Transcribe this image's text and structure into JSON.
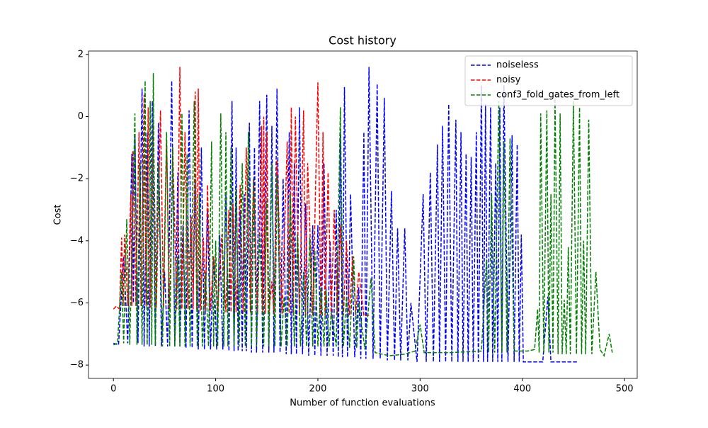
{
  "chart_data": {
    "type": "line",
    "title": "Cost history",
    "x_label": "Number of function evaluations",
    "y_label": "Cost",
    "xlim": [
      -24.4,
      512.4
    ],
    "ylim": [
      -8.43,
      2.11
    ],
    "xticks": [
      0,
      100,
      200,
      300,
      400,
      500
    ],
    "yticks": [
      {
        "value": -8,
        "label": "−8"
      },
      {
        "value": -6,
        "label": "−6"
      },
      {
        "value": -4,
        "label": "−4"
      },
      {
        "value": -2,
        "label": "−2"
      },
      0,
      2
    ],
    "legend": "upper right",
    "line_style": "dashed",
    "series": [
      {
        "name": "noiseless",
        "color": "#0000ff",
        "x": [
          0,
          5,
          10,
          14,
          18,
          19.5,
          21,
          24,
          28,
          30,
          33,
          35,
          38,
          41,
          44,
          47,
          50,
          53,
          57,
          60,
          63,
          65,
          68,
          71,
          74,
          77,
          80,
          83,
          86,
          89,
          92,
          95,
          98,
          101,
          104,
          107,
          110,
          113,
          116,
          118,
          120,
          122,
          124,
          126,
          128,
          130,
          133,
          135,
          138,
          140,
          143,
          146,
          150,
          152,
          155,
          157,
          160,
          163,
          166,
          169,
          172,
          174,
          177,
          179,
          182,
          185,
          188,
          191,
          195,
          197,
          200,
          203,
          206,
          209,
          212,
          215,
          218,
          220,
          222,
          224,
          226,
          229,
          232,
          236,
          240,
          242,
          245,
          247,
          250,
          254,
          258,
          261,
          265,
          268,
          272,
          275,
          278,
          281,
          285,
          288,
          291,
          297,
          303,
          306,
          310,
          313,
          317,
          319,
          322,
          325,
          328,
          331,
          335,
          337,
          340,
          342,
          345,
          347,
          350,
          352,
          355,
          357,
          360,
          362,
          364,
          366,
          369,
          371,
          374,
          376,
          378,
          380,
          382,
          386,
          390,
          392,
          395,
          397,
          399,
          401,
          420,
          425,
          428,
          440,
          455
        ],
        "values": [
          -7.3,
          -7.35,
          -4.5,
          -7.3,
          -1.2,
          -6,
          -0.6,
          -7.3,
          0.9,
          -7.4,
          -0.5,
          -7.4,
          0.5,
          -7.4,
          -0.2,
          -7.4,
          -5,
          -7.4,
          1.15,
          -7.4,
          -1.8,
          -7.4,
          -3.5,
          -7.45,
          0.2,
          -7.45,
          -2,
          -7.5,
          -1,
          -7.5,
          -3,
          -7.5,
          -4.5,
          -7.5,
          -3.8,
          -7.5,
          -2.5,
          -7.55,
          0.5,
          -7.55,
          -1,
          -7.55,
          -3,
          -7.55,
          -2.5,
          -7.55,
          -0.2,
          -7.6,
          -1,
          -7.6,
          0.5,
          -7.6,
          0.7,
          -7.6,
          -0.3,
          -7.6,
          0.9,
          -7.6,
          -2,
          -7.65,
          -0.5,
          -7.65,
          -1.5,
          -7.65,
          0.3,
          -7.65,
          -2.8,
          -7.7,
          -3.5,
          -7.7,
          -3.5,
          -7.7,
          -1.5,
          -7.7,
          -4,
          -7.7,
          -3,
          -7.75,
          -0.5,
          -7.75,
          0.95,
          -7.75,
          -2.5,
          -7.75,
          -5.5,
          -7.8,
          -0.5,
          -7.8,
          1.6,
          -7.8,
          1.05,
          -7.8,
          0.6,
          -7.85,
          -2.4,
          -7.85,
          -3.6,
          -7.85,
          -3.6,
          -7.85,
          -6,
          -7.9,
          -2.5,
          -7.9,
          -1.8,
          -7.9,
          -0.9,
          -7.9,
          -0.3,
          -7.9,
          0.4,
          -7.9,
          -0.1,
          -7.9,
          -0.5,
          -7.9,
          -1.2,
          -7.9,
          -1.3,
          -7.9,
          -0.5,
          -7.9,
          1.0,
          -7.9,
          0.4,
          -7.9,
          0.3,
          -7.9,
          -1.5,
          -7.9,
          0.3,
          -7.9,
          1.0,
          -7.9,
          -0.6,
          -7.9,
          -0.9,
          -7.9,
          -3.8,
          -7.9,
          -7.9,
          -5.8,
          -7.9,
          -7.9,
          -7.9
        ]
      },
      {
        "name": "noisy",
        "color": "#ff0000",
        "x": [
          0,
          3,
          6,
          8,
          9.5,
          11,
          14,
          17,
          18,
          19,
          22,
          25,
          27,
          30,
          32,
          34,
          36,
          39,
          42,
          46,
          49,
          52,
          55,
          58,
          62,
          65,
          67,
          70,
          73,
          76,
          78,
          80,
          81.5,
          83,
          85,
          88,
          90,
          92,
          95,
          98,
          102,
          106,
          110,
          113,
          115,
          117,
          120,
          124,
          127,
          130,
          134,
          137,
          141,
          145,
          146,
          147,
          148.5,
          150,
          152,
          155,
          157,
          160,
          165,
          170,
          172,
          174,
          176,
          178,
          182,
          186,
          188,
          190,
          195,
          200,
          203,
          205,
          207,
          210,
          213,
          216,
          219,
          222,
          225,
          228,
          231,
          234,
          237,
          240,
          245,
          250
        ],
        "values": [
          -6.2,
          -6.1,
          -6.2,
          -3.9,
          -6.1,
          -3.8,
          -6.1,
          -2.5,
          -6.1,
          -1.1,
          -6.1,
          -0.5,
          -6.1,
          0.7,
          -6.1,
          0.3,
          -6.15,
          -0.2,
          -6.15,
          0.2,
          -6.15,
          -0.8,
          -6.2,
          -1.0,
          -6.2,
          1.6,
          -6.2,
          -0.5,
          -6.2,
          -3.2,
          -6.2,
          0.8,
          -6.2,
          0.9,
          -6.25,
          -3.9,
          -6.25,
          -2.2,
          -6.25,
          -4.5,
          -6.25,
          -3.8,
          -6.3,
          -3.0,
          -6.3,
          -2.8,
          -6.3,
          -2.2,
          -6.3,
          -1.0,
          -6.3,
          -2,
          -6.35,
          -0.3,
          -6.35,
          0.0,
          -6.35,
          -0.5,
          -6.35,
          -5.3,
          -6.35,
          -1.4,
          -6.35,
          -0.8,
          -6.35,
          0.3,
          -6.4,
          0.0,
          -6.4,
          0.2,
          -6.4,
          -1.5,
          -6.4,
          1.1,
          -6.4,
          -0.5,
          -6.4,
          -1.8,
          -6.4,
          -3,
          -6.4,
          -3.5,
          -6.4,
          -4,
          -6.4,
          -4.5,
          -6.4,
          -5,
          -6.4,
          -6.4
        ]
      },
      {
        "name": "conf3_fold_gates_from_left",
        "color": "#008000",
        "x": [
          0,
          4,
          8,
          10,
          13,
          16,
          21,
          23,
          26,
          28,
          31,
          33,
          36,
          37.5,
          39,
          41,
          44,
          48,
          52,
          55,
          58,
          60,
          63,
          65,
          67,
          70,
          72,
          75,
          79,
          82,
          84,
          87,
          90,
          93,
          96,
          98,
          100,
          102,
          105,
          108,
          110,
          112,
          115,
          118,
          120,
          123,
          126,
          129,
          132,
          135,
          137,
          140,
          143,
          147,
          150,
          152,
          155,
          158,
          160,
          164,
          167,
          170,
          173,
          177,
          180,
          183,
          186,
          189,
          192,
          195,
          197,
          200,
          203,
          206,
          208,
          211,
          213,
          218,
          222,
          225,
          228,
          231,
          235,
          238,
          240,
          246,
          252,
          256,
          270,
          285,
          295,
          300,
          304,
          330,
          360,
          365,
          367,
          370,
          373,
          377,
          380,
          382,
          385,
          388,
          392,
          405,
          412,
          415,
          416.5,
          418,
          421,
          424,
          426,
          428,
          430,
          432,
          435,
          437,
          439,
          441,
          443,
          445,
          447,
          450,
          453,
          456,
          458,
          460,
          462,
          465,
          468,
          472,
          476,
          480,
          485,
          488
        ],
        "values": [
          -7.35,
          -7.3,
          -5,
          -7.3,
          -3.3,
          -7.35,
          0.1,
          -7.35,
          -1.5,
          -7.35,
          1.15,
          -7.35,
          0.5,
          -7.35,
          1.4,
          -7.35,
          -1.5,
          -7.4,
          -0.5,
          -7.4,
          -1,
          -7.4,
          -4.5,
          -7.4,
          0.1,
          -7.4,
          -1.2,
          -7.4,
          0.5,
          -7.4,
          -2.5,
          -7.4,
          -5,
          -7.4,
          -0.8,
          -7.4,
          -4,
          -7.4,
          0.1,
          -7.4,
          -0.5,
          -7.4,
          -1,
          -7.4,
          -2.3,
          -7.4,
          -1.5,
          -7.4,
          -0.5,
          -7.4,
          -2,
          -7.4,
          -3.8,
          -7.4,
          -2.7,
          -7.4,
          -1.5,
          -7.4,
          -1.9,
          -7.4,
          -5.8,
          -7.4,
          -2.5,
          -7.4,
          -3.8,
          -7.4,
          -5,
          -7.4,
          -3.9,
          -7.4,
          -4.3,
          -7.4,
          -5.5,
          -7.4,
          -5.6,
          -7.4,
          -6.3,
          -7.4,
          0.3,
          -7.4,
          -5.8,
          -7.45,
          -4.5,
          -7.45,
          -6,
          -7.5,
          -5.2,
          -7.6,
          -7.7,
          -7.65,
          -7.55,
          -6.7,
          -7.6,
          -7.6,
          -7.55,
          -4.6,
          -7.6,
          -2.5,
          -7.6,
          0.5,
          -7.6,
          -0.8,
          -7.6,
          -0.7,
          -7.55,
          -7.55,
          -7.5,
          -6.2,
          -7.6,
          0.1,
          -7.6,
          0.2,
          -7.6,
          -2.5,
          -7.6,
          0.6,
          -7.65,
          0.1,
          -7.65,
          -5.9,
          -7.65,
          -4.2,
          -7.65,
          0.5,
          -7.65,
          0.3,
          -7.65,
          -4,
          -7.65,
          -0.1,
          -7.65,
          -5,
          -7.5,
          -7.7,
          -7,
          -7.6
        ]
      }
    ]
  }
}
